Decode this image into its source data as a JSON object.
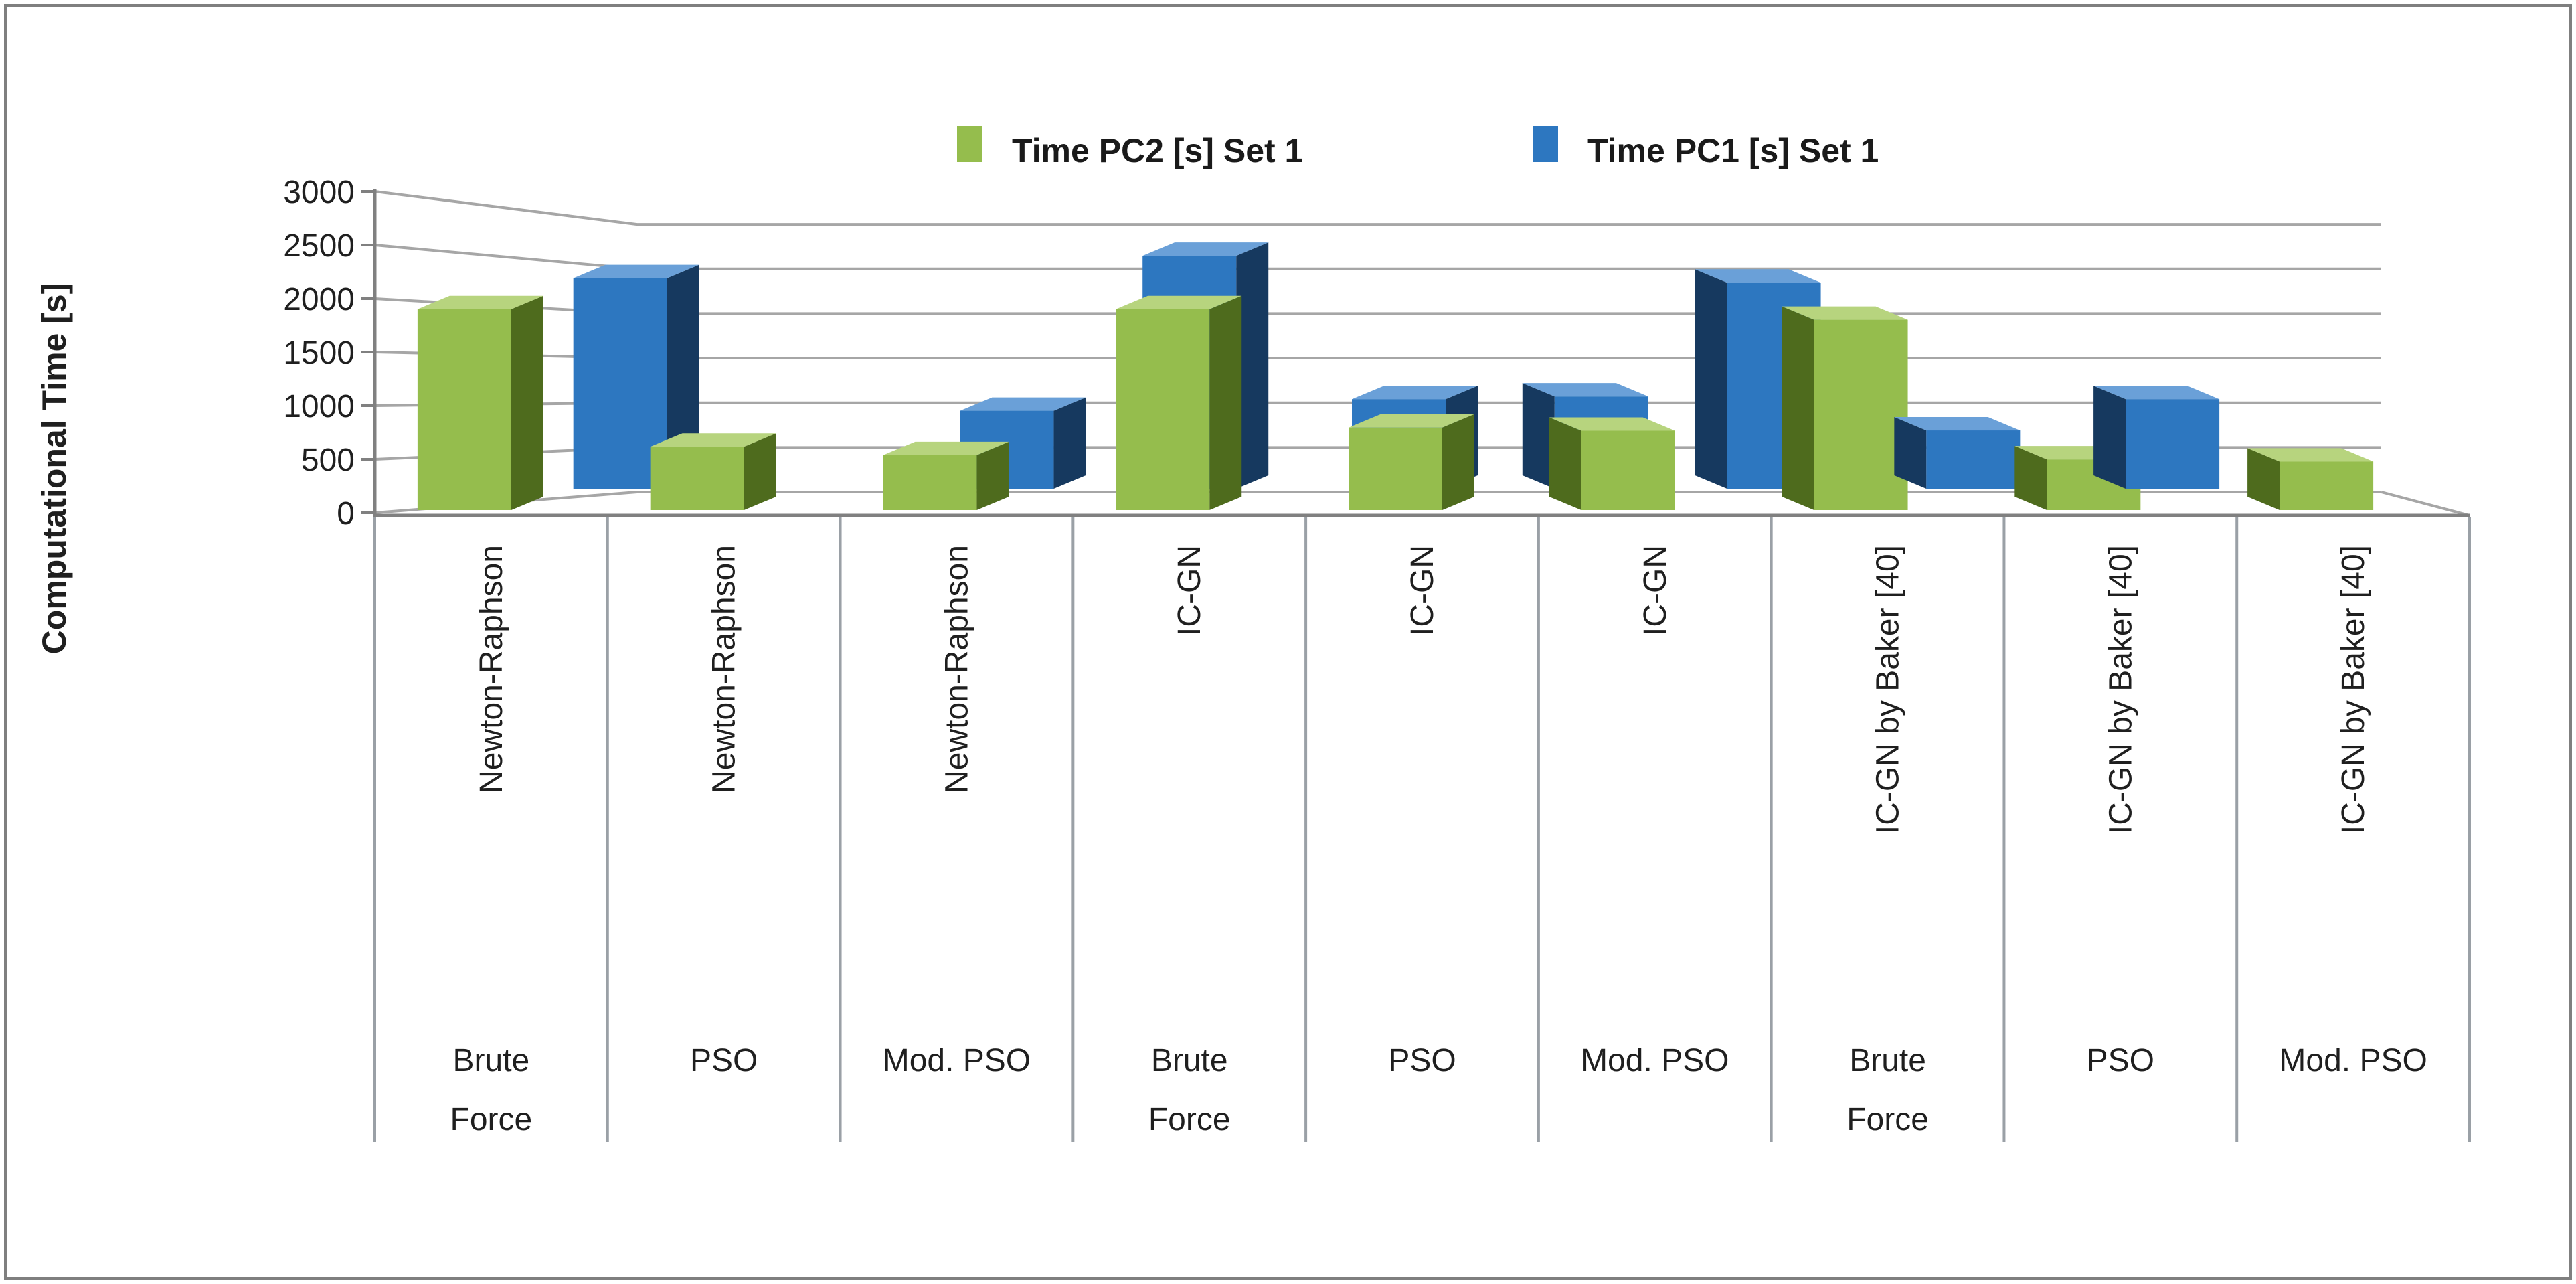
{
  "figure": {
    "background": "#ffffff",
    "border_color": "#7f7f7f",
    "text_color": "#1f1f1f",
    "axis_color": "#808080",
    "grid_color": "#a6a6a6",
    "divider_color": "#9aa0a6"
  },
  "chart_data": {
    "type": "bar",
    "projection": "3d-column",
    "title": "",
    "xlabel": "",
    "ylabel": "Computational Time [s]",
    "ylim": [
      0,
      3000
    ],
    "yticks": [
      0,
      500,
      1000,
      1500,
      2000,
      2500,
      3000
    ],
    "grid": true,
    "legend_position": "top-center",
    "categories": [
      {
        "search": "Brute Force",
        "method": "Newton-Raphson"
      },
      {
        "search": "PSO",
        "method": "Newton-Raphson"
      },
      {
        "search": "Mod. PSO",
        "method": "Newton-Raphson"
      },
      {
        "search": "Brute Force",
        "method": "IC-GN"
      },
      {
        "search": "PSO",
        "method": "IC-GN"
      },
      {
        "search": "Mod. PSO",
        "method": "IC-GN"
      },
      {
        "search": "Brute Force",
        "method": "IC-GN by Baker [40]"
      },
      {
        "search": "PSO",
        "method": "IC-GN by Baker [40]"
      },
      {
        "search": "Mod. PSO",
        "method": "IC-GN by Baker [40]"
      }
    ],
    "series": [
      {
        "name": "Time PC2 [s] Set 1",
        "color": "#95bd4d",
        "side_color": "#4e6b1d",
        "top_color": "#b7d47e",
        "values": [
          1900,
          600,
          520,
          1900,
          780,
          750,
          1800,
          480,
          460
        ]
      },
      {
        "name": "Time PC1 [s] Set 1",
        "color": "#2d77c0",
        "side_color": "#16395f",
        "top_color": "#6aa0d8",
        "values": [
          null,
          2350,
          870,
          2600,
          1000,
          1030,
          2300,
          650,
          1000
        ]
      }
    ]
  }
}
